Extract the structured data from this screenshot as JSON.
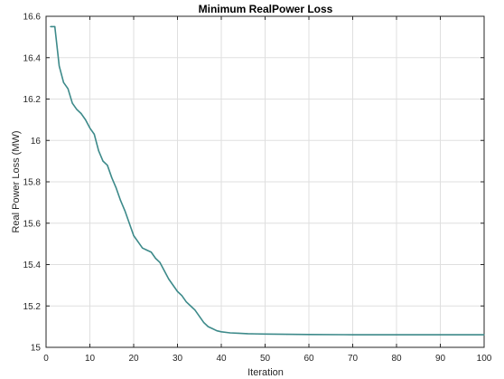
{
  "chart_data": {
    "type": "line",
    "title": "Minimum RealPower Loss",
    "xlabel": "Iteration",
    "ylabel": "Real Power Loss (MW)",
    "xlim": [
      0,
      100
    ],
    "ylim": [
      15,
      16.6
    ],
    "xticks": [
      0,
      10,
      20,
      30,
      40,
      50,
      60,
      70,
      80,
      90,
      100
    ],
    "xtick_labels": [
      "0",
      "10",
      "20",
      "30",
      "40",
      "50",
      "60",
      "70",
      "80",
      "90",
      "100"
    ],
    "yticks": [
      15,
      15.2,
      15.4,
      15.6,
      15.8,
      16,
      16.2,
      16.4,
      16.6
    ],
    "ytick_labels": [
      "15",
      "15.2",
      "15.4",
      "15.6",
      "15.8",
      "16",
      "16.2",
      "16.4",
      "16.6"
    ],
    "grid": true,
    "line_color": "#3d8a8a",
    "series": [
      {
        "x": [
          1,
          2,
          3,
          4,
          5,
          6,
          7,
          8,
          9,
          10,
          11,
          12,
          13,
          14,
          15,
          16,
          17,
          18,
          19,
          20,
          21,
          22,
          23,
          24,
          25,
          26,
          27,
          28,
          29,
          30,
          31,
          32,
          33,
          34,
          35,
          36,
          37,
          38,
          39,
          40,
          42,
          44,
          46,
          48,
          50,
          55,
          60,
          70,
          80,
          90,
          100
        ],
        "values": [
          16.55,
          16.55,
          16.36,
          16.28,
          16.25,
          16.18,
          16.15,
          16.13,
          16.1,
          16.06,
          16.03,
          15.95,
          15.9,
          15.88,
          15.82,
          15.77,
          15.71,
          15.66,
          15.6,
          15.54,
          15.51,
          15.48,
          15.47,
          15.46,
          15.43,
          15.41,
          15.37,
          15.33,
          15.3,
          15.27,
          15.25,
          15.22,
          15.2,
          15.18,
          15.15,
          15.12,
          15.1,
          15.09,
          15.08,
          15.075,
          15.07,
          15.068,
          15.066,
          15.065,
          15.064,
          15.063,
          15.062,
          15.061,
          15.061,
          15.061,
          15.061
        ]
      }
    ]
  }
}
